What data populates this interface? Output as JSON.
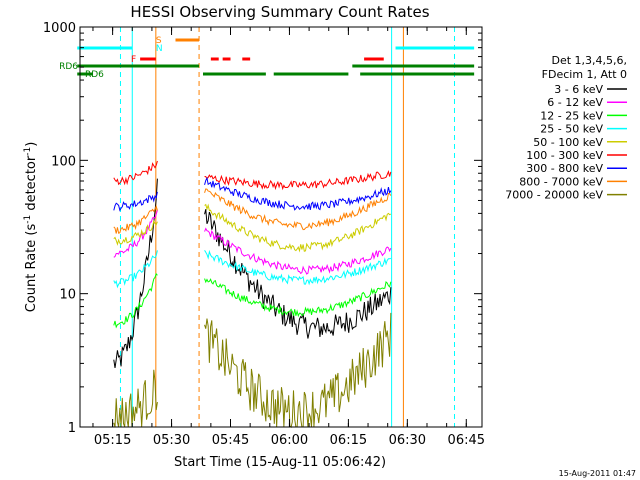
{
  "chart_data": {
    "type": "line",
    "title": "HESSI Observing Summary Count Rates",
    "xlabel": "Start Time (15-Aug-11 05:06:42)",
    "ylabel_main": "Count Rate (s",
    "ylabel_sup1": "-1",
    "ylabel_mid": " detector",
    "ylabel_sup2": "-1",
    "ylabel_end": ")",
    "y_scale": "log",
    "ylim": [
      1,
      1000
    ],
    "x_range_minutes": [
      "05:06:42",
      "06:49:00"
    ],
    "x_ticks": [
      "05:15",
      "05:30",
      "05:45",
      "06:00",
      "06:15",
      "06:30",
      "06:45"
    ],
    "y_ticks": [
      "1",
      "10",
      "100",
      "1000"
    ],
    "timestamp": "15-Aug-2011 01:47",
    "legend_header": [
      "Det 1,3,4,5,6,",
      "FDecim 1, Att 0"
    ],
    "legend": [
      {
        "label": "3 - 6 keV",
        "color": "#000000"
      },
      {
        "label": "6 - 12 keV",
        "color": "#ff00ff"
      },
      {
        "label": "12 - 25 keV",
        "color": "#00ff00"
      },
      {
        "label": "25 - 50 keV",
        "color": "#00ffff"
      },
      {
        "label": "50 - 100 keV",
        "color": "#cccc00"
      },
      {
        "label": "100 - 300 keV",
        "color": "#ff0000"
      },
      {
        "label": "300 - 800 keV",
        "color": "#0000ff"
      },
      {
        "label": "800 - 7000 keV",
        "color": "#ff8000"
      },
      {
        "label": "7000 - 20000 keV",
        "color": "#808000"
      }
    ],
    "flag_labels": {
      "saa": "S",
      "night": "N",
      "flare": "F",
      "rd6_a": "RD6",
      "rd6_b": "RD6"
    },
    "flag_colors": {
      "saa": "#ff8000",
      "night": "#00ffff",
      "flare": "#ff0000",
      "rd6": "#008000"
    },
    "flag_bars": {
      "night": [
        [
          "05:06",
          "05:20"
        ],
        [
          "06:27",
          "06:47"
        ]
      ],
      "saa": [
        [
          "05:31",
          "05:37"
        ]
      ],
      "flare": [
        [
          "05:22",
          "05:26"
        ],
        [
          "05:40",
          "05:42"
        ],
        [
          "05:43",
          "05:45"
        ],
        [
          "05:48",
          "05:50"
        ],
        [
          "06:19",
          "06:24"
        ]
      ],
      "rd6_a": [
        [
          "05:06",
          "05:37"
        ],
        [
          "06:16",
          "06:47"
        ]
      ],
      "rd6_b": [
        [
          "05:06",
          "05:10"
        ],
        [
          "05:38",
          "05:54"
        ],
        [
          "05:56",
          "06:15"
        ],
        [
          "06:18",
          "06:47"
        ]
      ]
    },
    "vlines_solid": [
      {
        "time": "05:20",
        "color": "#00ffff"
      },
      {
        "time": "05:26",
        "color": "#ff8000"
      },
      {
        "time": "06:26",
        "color": "#00ffff"
      },
      {
        "time": "06:29",
        "color": "#ff8000"
      }
    ],
    "vlines_dashed": [
      {
        "time": "05:17",
        "color": "#00ffff"
      },
      {
        "time": "05:37",
        "color": "#ff8000"
      },
      {
        "time": "06:42",
        "color": "#00ffff"
      }
    ],
    "series": [
      {
        "name": "3 - 6 keV",
        "color": "#000000",
        "segments": [
          {
            "t0": 5.255,
            "t1": 5.44,
            "start": 3,
            "end": 60,
            "shape": "rise"
          },
          {
            "t0": 5.64,
            "t1": 6.43,
            "start": 40,
            "end": 10,
            "shape": "valley",
            "min": 3
          }
        ]
      },
      {
        "name": "6 - 12 keV",
        "color": "#ff00ff",
        "segments": [
          {
            "t0": 5.255,
            "t1": 5.44,
            "start": 20,
            "end": 40,
            "shape": "rise"
          },
          {
            "t0": 5.64,
            "t1": 6.43,
            "start": 30,
            "end": 22,
            "shape": "valley",
            "min": 13
          }
        ]
      },
      {
        "name": "12 - 25 keV",
        "color": "#00ff00",
        "segments": [
          {
            "t0": 5.255,
            "t1": 5.44,
            "start": 6,
            "end": 14,
            "shape": "rise"
          },
          {
            "t0": 5.64,
            "t1": 6.43,
            "start": 13,
            "end": 12,
            "shape": "valley",
            "min": 7
          }
        ]
      },
      {
        "name": "25 - 50 keV",
        "color": "#00ffff",
        "segments": [
          {
            "t0": 5.255,
            "t1": 5.44,
            "start": 12,
            "end": 20,
            "shape": "rise"
          },
          {
            "t0": 5.64,
            "t1": 6.43,
            "start": 20,
            "end": 18,
            "shape": "valley",
            "min": 12
          }
        ]
      },
      {
        "name": "50 - 100 keV",
        "color": "#cccc00",
        "segments": [
          {
            "t0": 5.255,
            "t1": 5.44,
            "start": 25,
            "end": 35,
            "shape": "rise"
          },
          {
            "t0": 5.64,
            "t1": 6.43,
            "start": 45,
            "end": 40,
            "shape": "valley",
            "min": 21
          }
        ]
      },
      {
        "name": "100 - 300 keV",
        "color": "#ff0000",
        "segments": [
          {
            "t0": 5.255,
            "t1": 5.44,
            "start": 70,
            "end": 95,
            "shape": "rise"
          },
          {
            "t0": 5.64,
            "t1": 6.43,
            "start": 75,
            "end": 80,
            "shape": "valley",
            "min": 63
          }
        ]
      },
      {
        "name": "300 - 800 keV",
        "color": "#0000ff",
        "segments": [
          {
            "t0": 5.255,
            "t1": 5.44,
            "start": 45,
            "end": 55,
            "shape": "rise"
          },
          {
            "t0": 5.64,
            "t1": 6.43,
            "start": 70,
            "end": 60,
            "shape": "valley",
            "min": 42
          }
        ]
      },
      {
        "name": "800 - 7000 keV",
        "color": "#ff8000",
        "segments": [
          {
            "t0": 5.255,
            "t1": 5.44,
            "start": 30,
            "end": 45,
            "shape": "rise"
          },
          {
            "t0": 5.64,
            "t1": 6.43,
            "start": 60,
            "end": 55,
            "shape": "valley",
            "min": 31
          }
        ]
      },
      {
        "name": "7000 - 20000 keV",
        "color": "#808000",
        "segments": [
          {
            "t0": 5.255,
            "t1": 5.44,
            "start": 1.2,
            "end": 2,
            "shape": "rise"
          },
          {
            "t0": 5.64,
            "t1": 6.43,
            "start": 5,
            "end": 5,
            "shape": "valley",
            "min": 1.3
          }
        ]
      }
    ]
  }
}
